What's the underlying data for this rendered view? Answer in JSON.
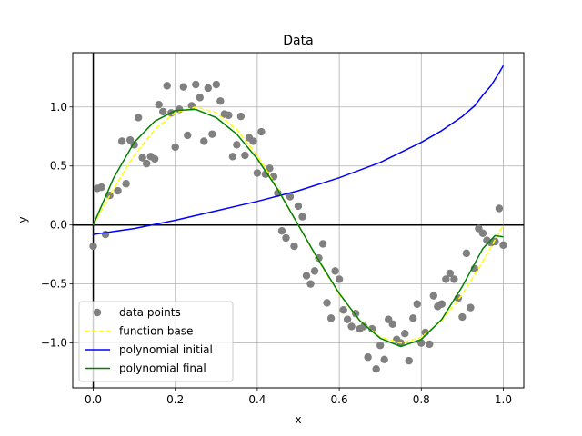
{
  "chart_data": {
    "type": "scatter",
    "title": "Data",
    "xlabel": "x",
    "ylabel": "y",
    "xlim": [
      -0.05,
      1.05
    ],
    "ylim": [
      -1.38,
      1.46
    ],
    "x_ticks": [
      0.0,
      0.2,
      0.4,
      0.6,
      0.8,
      1.0
    ],
    "x_tick_labels": [
      "0.0",
      "0.2",
      "0.4",
      "0.6",
      "0.8",
      "1.0"
    ],
    "y_ticks": [
      -1.0,
      -0.5,
      0.0,
      0.5,
      1.0
    ],
    "y_tick_labels": [
      "−1.0",
      "−0.5",
      "0.0",
      "0.5",
      "1.0"
    ],
    "grid": true,
    "legend_position": "lower-left",
    "reference_lines": {
      "x": 0,
      "y": 0,
      "color": "#000000"
    },
    "series": [
      {
        "name": "data points",
        "kind": "scatter",
        "color": "#808080",
        "points": [
          [
            0.0,
            -0.18
          ],
          [
            0.01,
            0.31
          ],
          [
            0.02,
            0.32
          ],
          [
            0.03,
            -0.08
          ],
          [
            0.04,
            0.25
          ],
          [
            0.06,
            0.29
          ],
          [
            0.07,
            0.71
          ],
          [
            0.08,
            0.35
          ],
          [
            0.09,
            0.72
          ],
          [
            0.1,
            0.68
          ],
          [
            0.11,
            0.91
          ],
          [
            0.12,
            0.57
          ],
          [
            0.13,
            0.52
          ],
          [
            0.14,
            0.58
          ],
          [
            0.15,
            0.56
          ],
          [
            0.16,
            1.02
          ],
          [
            0.17,
            0.96
          ],
          [
            0.18,
            1.18
          ],
          [
            0.19,
            0.95
          ],
          [
            0.2,
            0.66
          ],
          [
            0.21,
            0.98
          ],
          [
            0.22,
            1.17
          ],
          [
            0.23,
            0.76
          ],
          [
            0.24,
            1.01
          ],
          [
            0.25,
            1.19
          ],
          [
            0.26,
            1.08
          ],
          [
            0.27,
            0.71
          ],
          [
            0.28,
            1.16
          ],
          [
            0.29,
            0.77
          ],
          [
            0.3,
            1.19
          ],
          [
            0.31,
            1.05
          ],
          [
            0.32,
            0.94
          ],
          [
            0.33,
            0.93
          ],
          [
            0.34,
            0.58
          ],
          [
            0.35,
            0.68
          ],
          [
            0.36,
            0.92
          ],
          [
            0.37,
            0.59
          ],
          [
            0.38,
            0.74
          ],
          [
            0.39,
            0.71
          ],
          [
            0.4,
            0.44
          ],
          [
            0.41,
            0.79
          ],
          [
            0.42,
            0.43
          ],
          [
            0.43,
            0.48
          ],
          [
            0.44,
            0.41
          ],
          [
            0.45,
            0.27
          ],
          [
            0.46,
            -0.05
          ],
          [
            0.47,
            -0.11
          ],
          [
            0.48,
            0.24
          ],
          [
            0.49,
            -0.18
          ],
          [
            0.5,
            0.16
          ],
          [
            0.51,
            0.07
          ],
          [
            0.52,
            -0.43
          ],
          [
            0.53,
            -0.5
          ],
          [
            0.54,
            -0.39
          ],
          [
            0.55,
            -0.28
          ],
          [
            0.56,
            -0.16
          ],
          [
            0.57,
            -0.66
          ],
          [
            0.58,
            -0.79
          ],
          [
            0.59,
            -0.39
          ],
          [
            0.6,
            -0.46
          ],
          [
            0.61,
            -0.72
          ],
          [
            0.62,
            -0.8
          ],
          [
            0.63,
            -0.86
          ],
          [
            0.64,
            -0.75
          ],
          [
            0.65,
            -0.88
          ],
          [
            0.66,
            -0.86
          ],
          [
            0.67,
            -1.12
          ],
          [
            0.68,
            -0.88
          ],
          [
            0.69,
            -1.22
          ],
          [
            0.7,
            -1.02
          ],
          [
            0.71,
            -1.14
          ],
          [
            0.72,
            -0.8
          ],
          [
            0.73,
            -0.84
          ],
          [
            0.74,
            -0.97
          ],
          [
            0.75,
            -1.0
          ],
          [
            0.76,
            -0.92
          ],
          [
            0.77,
            -1.15
          ],
          [
            0.78,
            -0.79
          ],
          [
            0.79,
            -0.67
          ],
          [
            0.8,
            -1.0
          ],
          [
            0.81,
            -0.91
          ],
          [
            0.82,
            -1.01
          ],
          [
            0.83,
            -0.6
          ],
          [
            0.84,
            -0.69
          ],
          [
            0.85,
            -0.67
          ],
          [
            0.86,
            -0.46
          ],
          [
            0.87,
            -0.41
          ],
          [
            0.88,
            -0.46
          ],
          [
            0.89,
            -0.62
          ],
          [
            0.9,
            -0.78
          ],
          [
            0.91,
            -0.24
          ],
          [
            0.92,
            -0.7
          ],
          [
            0.93,
            -0.37
          ],
          [
            0.94,
            -0.03
          ],
          [
            0.95,
            -0.07
          ],
          [
            0.96,
            -0.13
          ],
          [
            0.97,
            -0.15
          ],
          [
            0.98,
            -0.14
          ],
          [
            0.99,
            0.14
          ],
          [
            1.0,
            -0.17
          ]
        ]
      },
      {
        "name": "function base",
        "kind": "line",
        "color": "#ffff00",
        "dash": true,
        "points": [
          [
            0.0,
            0.0
          ],
          [
            0.05,
            0.309
          ],
          [
            0.1,
            0.588
          ],
          [
            0.15,
            0.809
          ],
          [
            0.2,
            0.951
          ],
          [
            0.25,
            1.0
          ],
          [
            0.3,
            0.951
          ],
          [
            0.35,
            0.809
          ],
          [
            0.4,
            0.588
          ],
          [
            0.45,
            0.309
          ],
          [
            0.5,
            0.0
          ],
          [
            0.55,
            -0.309
          ],
          [
            0.6,
            -0.588
          ],
          [
            0.65,
            -0.809
          ],
          [
            0.7,
            -0.951
          ],
          [
            0.75,
            -1.0
          ],
          [
            0.8,
            -0.951
          ],
          [
            0.85,
            -0.809
          ],
          [
            0.9,
            -0.588
          ],
          [
            0.95,
            -0.309
          ],
          [
            1.0,
            0.0
          ]
        ]
      },
      {
        "name": "polynomial initial",
        "kind": "line",
        "color": "#0000ff",
        "dash": false,
        "points": [
          [
            0.0,
            -0.08
          ],
          [
            0.1,
            -0.03
          ],
          [
            0.2,
            0.04
          ],
          [
            0.3,
            0.12
          ],
          [
            0.4,
            0.2
          ],
          [
            0.5,
            0.29
          ],
          [
            0.6,
            0.4
          ],
          [
            0.7,
            0.53
          ],
          [
            0.8,
            0.7
          ],
          [
            0.85,
            0.8
          ],
          [
            0.9,
            0.92
          ],
          [
            0.93,
            1.01
          ],
          [
            0.95,
            1.1
          ],
          [
            0.97,
            1.18
          ],
          [
            0.99,
            1.29
          ],
          [
            1.0,
            1.35
          ]
        ]
      },
      {
        "name": "polynomial final",
        "kind": "line",
        "color": "#008000",
        "dash": false,
        "points": [
          [
            0.0,
            0.0
          ],
          [
            0.05,
            0.4
          ],
          [
            0.1,
            0.7
          ],
          [
            0.15,
            0.88
          ],
          [
            0.2,
            0.97
          ],
          [
            0.25,
            0.98
          ],
          [
            0.3,
            0.91
          ],
          [
            0.35,
            0.77
          ],
          [
            0.4,
            0.56
          ],
          [
            0.45,
            0.3
          ],
          [
            0.5,
            0.0
          ],
          [
            0.55,
            -0.3
          ],
          [
            0.6,
            -0.58
          ],
          [
            0.65,
            -0.81
          ],
          [
            0.7,
            -0.96
          ],
          [
            0.75,
            -1.03
          ],
          [
            0.8,
            -0.97
          ],
          [
            0.85,
            -0.8
          ],
          [
            0.9,
            -0.52
          ],
          [
            0.95,
            -0.2
          ],
          [
            0.98,
            -0.09
          ],
          [
            1.0,
            -0.1
          ]
        ]
      }
    ]
  }
}
